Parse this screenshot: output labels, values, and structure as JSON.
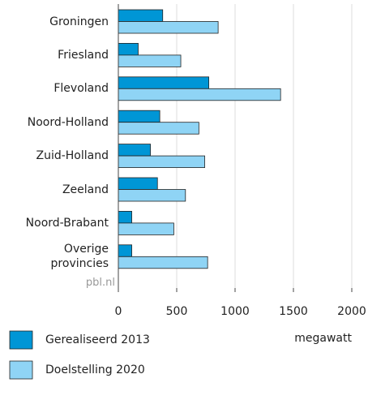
{
  "chart_data": {
    "type": "hbar",
    "categories": [
      "Groningen",
      "Friesland",
      "Flevoland",
      "Noord-Holland",
      "Zuid-Holland",
      "Zeeland",
      "Noord-Brabant",
      "Overige provincies"
    ],
    "series": [
      {
        "name": "Gerealiseerd 2013",
        "color": "#0096d6",
        "values": [
          380,
          170,
          775,
          355,
          275,
          335,
          115,
          115
        ]
      },
      {
        "name": "Doelstelling 2020",
        "color": "#8fd4f5",
        "values": [
          855,
          535,
          1390,
          690,
          740,
          575,
          475,
          765
        ]
      }
    ],
    "xlim": [
      0,
      2000
    ],
    "xticks": [
      0,
      500,
      1000,
      1500,
      2000
    ],
    "xlabel": "megawatt",
    "source": "pbl.nl",
    "grid": true
  }
}
